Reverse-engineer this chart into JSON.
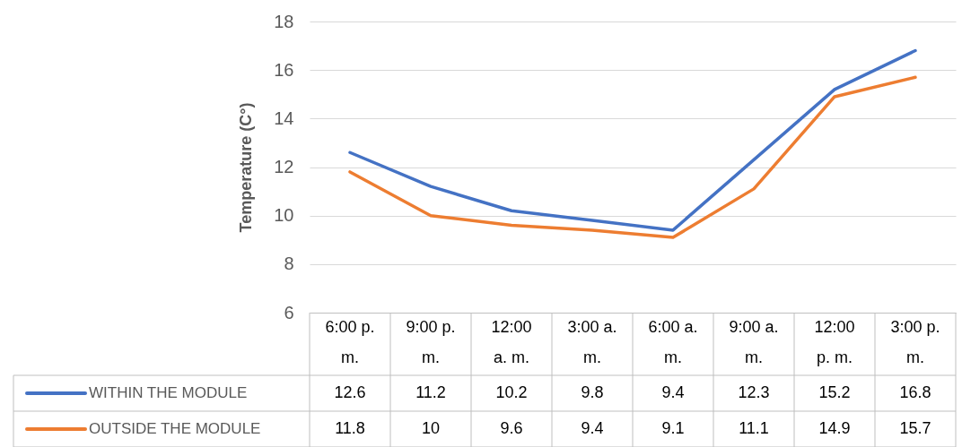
{
  "chart_data": {
    "type": "line",
    "ylabel": "Temperature (C°)",
    "categories": [
      "6:00 p. m.",
      "9:00 p. m.",
      "12:00 a. m.",
      "3:00 a. m.",
      "6:00 a. m.",
      "9:00 a. m.",
      "12:00 p. m.",
      "3:00 p. m."
    ],
    "series": [
      {
        "name": "WITHIN THE MODULE",
        "color": "#4472c4",
        "values": [
          12.6,
          11.2,
          10.2,
          9.8,
          9.4,
          12.3,
          15.2,
          16.8
        ]
      },
      {
        "name": "OUTSIDE THE MODULE",
        "color": "#ed7d31",
        "values": [
          11.8,
          10,
          9.6,
          9.4,
          9.1,
          11.1,
          14.9,
          15.7
        ]
      }
    ],
    "ylim": [
      6,
      18
    ],
    "yticks": [
      6,
      8,
      10,
      12,
      14,
      16,
      18
    ],
    "grid": "y",
    "legend": "bottom",
    "data_labels": true
  }
}
